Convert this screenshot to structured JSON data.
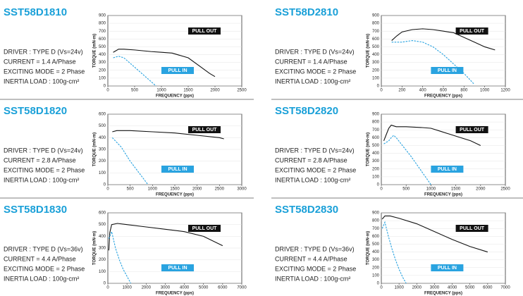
{
  "chart_data": [
    {
      "type": "line",
      "title": "SST58D1810",
      "annotations": [
        "DRIVER : TYPE D (Vs=24v)",
        "CURRENT = 1.4 A/Phase",
        "EXCITING MODE = 2 Phase",
        "INERTIA LOAD : 100g-cm²"
      ],
      "x_label": "FREQUENCY (pps)",
      "y_label": "TORQUE (mN·m)",
      "xlim": [
        0,
        2500
      ],
      "xticks": [
        0,
        500,
        1000,
        1500,
        2000,
        2500
      ],
      "ylim": [
        0,
        900
      ],
      "yticks": [
        0,
        100,
        200,
        300,
        400,
        500,
        600,
        700,
        800,
        900
      ],
      "series": [
        {
          "name": "PULL OUT",
          "color": "#111111",
          "dashed": false,
          "x": [
            100,
            200,
            300,
            500,
            800,
            1000,
            1200,
            1500,
            1700,
            1900,
            2000
          ],
          "values": [
            430,
            470,
            470,
            460,
            440,
            430,
            420,
            360,
            260,
            160,
            120
          ]
        },
        {
          "name": "PULL IN",
          "color": "#29a3e0",
          "dashed": true,
          "x": [
            100,
            200,
            300,
            400,
            500,
            600,
            700,
            800,
            900
          ],
          "values": [
            360,
            380,
            360,
            300,
            240,
            180,
            120,
            60,
            0
          ]
        }
      ]
    },
    {
      "type": "line",
      "title": "SST58D2810",
      "annotations": [
        "DRIVER : TYPE D (Vs=24v)",
        "CURRENT = 1.4 A/Phase",
        "EXCITING MODE = 2 Phase",
        "INERTIA LOAD : 100g-cm²"
      ],
      "x_label": "FREQUENCY (pps)",
      "y_label": "TORQUE (mN·m)",
      "xlim": [
        0,
        1200
      ],
      "xticks": [
        0,
        200,
        400,
        600,
        800,
        1000,
        1200
      ],
      "ylim": [
        0,
        900
      ],
      "yticks": [
        0,
        100,
        200,
        300,
        400,
        500,
        600,
        700,
        800,
        900
      ],
      "series": [
        {
          "name": "PULL OUT",
          "color": "#111111",
          "dashed": false,
          "x": [
            100,
            150,
            200,
            300,
            400,
            500,
            600,
            700,
            800,
            900,
            1000,
            1100
          ],
          "values": [
            580,
            640,
            690,
            720,
            730,
            720,
            700,
            680,
            620,
            560,
            500,
            460
          ]
        },
        {
          "name": "PULL IN",
          "color": "#29a3e0",
          "dashed": true,
          "x": [
            100,
            200,
            300,
            400,
            500,
            600,
            700,
            800,
            900
          ],
          "values": [
            560,
            560,
            580,
            560,
            500,
            400,
            280,
            160,
            20
          ]
        }
      ]
    },
    {
      "type": "line",
      "title": "SST58D1820",
      "annotations": [
        "DRIVER : TYPE D (Vs=24v)",
        "CURRENT = 2.8 A/Phase",
        "EXCITING MODE = 2 Phase",
        "INERTIA LOAD : 100g-cm²"
      ],
      "x_label": "FREQUENCY (pps)",
      "y_label": "TORQUE (mN·m)",
      "xlim": [
        0,
        3000
      ],
      "xticks": [
        0,
        500,
        1000,
        1500,
        2000,
        2500,
        3000
      ],
      "ylim": [
        0,
        600
      ],
      "yticks": [
        0,
        100,
        200,
        300,
        400,
        500,
        600
      ],
      "series": [
        {
          "name": "PULL OUT",
          "color": "#111111",
          "dashed": false,
          "x": [
            100,
            200,
            500,
            1000,
            1500,
            2000,
            2500,
            2600
          ],
          "values": [
            450,
            460,
            460,
            450,
            440,
            420,
            400,
            390
          ]
        },
        {
          "name": "PULL IN",
          "color": "#29a3e0",
          "dashed": true,
          "x": [
            100,
            200,
            300,
            400,
            500,
            600,
            700,
            800,
            900
          ],
          "values": [
            400,
            360,
            320,
            260,
            200,
            150,
            100,
            50,
            0
          ]
        }
      ]
    },
    {
      "type": "line",
      "title": "SST58D2820",
      "annotations": [
        "DRIVER : TYPE D (Vs=24v)",
        "CURRENT = 2.8 A/Phase",
        "EXCITING MODE = 2 Phase",
        "INERTIA LOAD : 100g-cm²"
      ],
      "x_label": "FREQUENCY (pps)",
      "y_label": "TORQUE (mN·m)",
      "xlim": [
        0,
        2500
      ],
      "xticks": [
        0,
        500,
        1000,
        1500,
        2000,
        2500
      ],
      "ylim": [
        0,
        900
      ],
      "yticks": [
        0,
        100,
        200,
        300,
        400,
        500,
        600,
        700,
        800,
        900
      ],
      "series": [
        {
          "name": "PULL OUT",
          "color": "#111111",
          "dashed": false,
          "x": [
            50,
            100,
            150,
            200,
            300,
            500,
            800,
            1000,
            1200,
            1500,
            1800,
            2000
          ],
          "values": [
            560,
            640,
            720,
            760,
            740,
            740,
            730,
            720,
            680,
            620,
            560,
            500
          ]
        },
        {
          "name": "PULL IN",
          "color": "#29a3e0",
          "dashed": true,
          "x": [
            50,
            100,
            150,
            200,
            250,
            300,
            400,
            600,
            800,
            1000
          ],
          "values": [
            520,
            540,
            560,
            600,
            630,
            600,
            520,
            360,
            180,
            0
          ]
        }
      ]
    },
    {
      "type": "line",
      "title": "SST58D1830",
      "annotations": [
        "DRIVER : TYPE D (Vs=36v)",
        "CURRENT = 4.4 A/Phase",
        "EXCITING MODE = 2 Phase",
        "INERTIA LOAD : 100g-cm²"
      ],
      "x_label": "FREQUENCY (pps)",
      "y_label": "TORQUE (mN·m)",
      "xlim": [
        0,
        7000
      ],
      "xticks": [
        0,
        1000,
        2000,
        3000,
        4000,
        5000,
        6000,
        7000
      ],
      "ylim": [
        0,
        600
      ],
      "yticks": [
        0,
        100,
        200,
        300,
        400,
        500,
        600
      ],
      "series": [
        {
          "name": "PULL OUT",
          "color": "#111111",
          "dashed": false,
          "x": [
            50,
            100,
            200,
            500,
            1000,
            2000,
            3000,
            4000,
            5000,
            6000
          ],
          "values": [
            280,
            430,
            500,
            510,
            500,
            480,
            460,
            440,
            400,
            320
          ]
        },
        {
          "name": "PULL IN",
          "color": "#29a3e0",
          "dashed": true,
          "x": [
            50,
            200,
            400,
            600,
            800,
            1000,
            1200
          ],
          "values": [
            380,
            440,
            300,
            200,
            120,
            60,
            0
          ]
        }
      ]
    },
    {
      "type": "line",
      "title": "SST58D2830",
      "annotations": [
        "DRIVER : TYPE D (Vs=36v)",
        "CURRENT = 4.4 A/Phase",
        "EXCITING MODE = 2 Phase",
        "INERTIA LOAD : 100g-cm²"
      ],
      "x_label": "FREQUENCY (pps)",
      "y_label": "TORQUE (mN·m)",
      "xlim": [
        0,
        7000
      ],
      "xticks": [
        0,
        1000,
        2000,
        3000,
        4000,
        5000,
        6000,
        7000
      ],
      "ylim": [
        0,
        900
      ],
      "yticks": [
        0,
        100,
        200,
        300,
        400,
        500,
        600,
        700,
        800,
        900
      ],
      "series": [
        {
          "name": "PULL OUT",
          "color": "#111111",
          "dashed": false,
          "x": [
            50,
            200,
            500,
            1000,
            2000,
            3000,
            4000,
            5000,
            6000
          ],
          "values": [
            820,
            860,
            860,
            830,
            760,
            660,
            560,
            470,
            400
          ]
        },
        {
          "name": "PULL IN",
          "color": "#29a3e0",
          "dashed": true,
          "x": [
            50,
            200,
            400,
            600,
            800,
            1000,
            1200,
            1400
          ],
          "values": [
            700,
            780,
            600,
            440,
            300,
            180,
            80,
            0
          ]
        }
      ]
    }
  ]
}
